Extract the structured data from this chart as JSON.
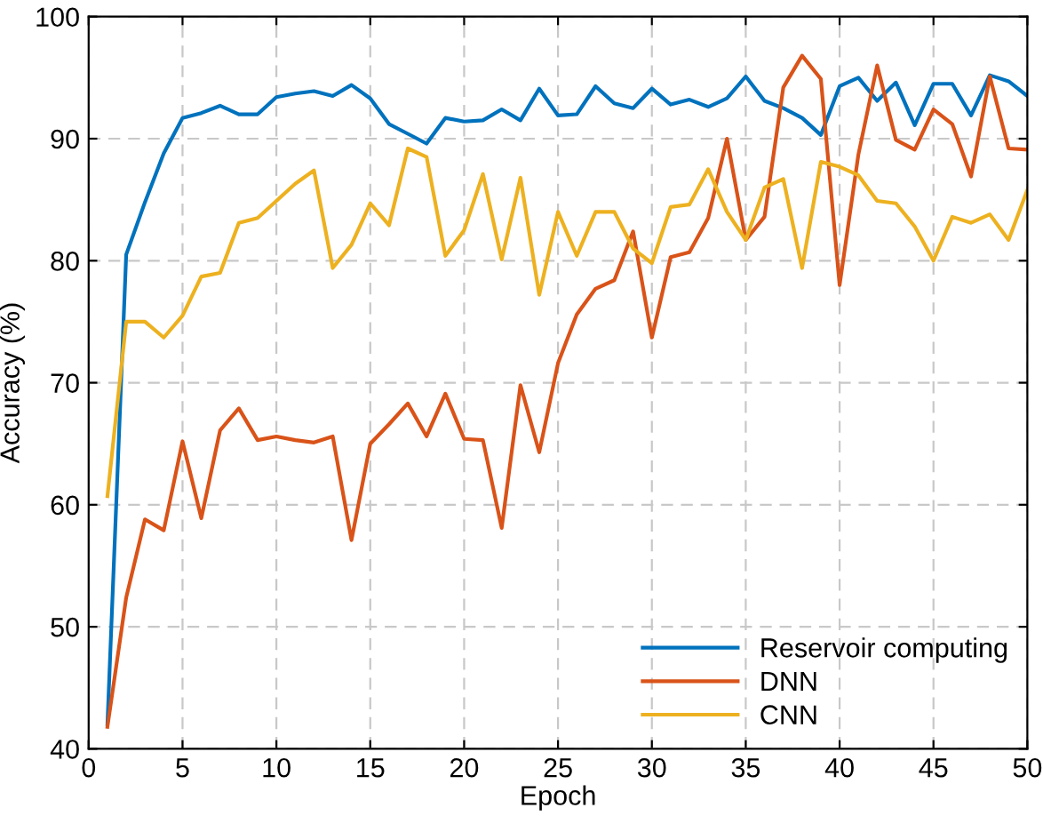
{
  "chart_data": {
    "type": "line",
    "xlabel": "Epoch",
    "ylabel": "Accuracy (%)",
    "x": [
      1,
      2,
      3,
      4,
      5,
      6,
      7,
      8,
      9,
      10,
      11,
      12,
      13,
      14,
      15,
      16,
      17,
      18,
      19,
      20,
      21,
      22,
      23,
      24,
      25,
      26,
      27,
      28,
      29,
      30,
      31,
      32,
      33,
      34,
      35,
      36,
      37,
      38,
      39,
      40,
      41,
      42,
      43,
      44,
      45,
      46,
      47,
      48,
      49,
      50
    ],
    "series": [
      {
        "name": "Reservoir computing",
        "color": "#0072bd",
        "values": [
          42,
          80.5,
          84.8,
          88.8,
          91.7,
          92.1,
          92.7,
          92.0,
          92.0,
          93.4,
          93.7,
          93.9,
          93.5,
          94.4,
          93.3,
          91.2,
          90.4,
          89.6,
          91.7,
          91.4,
          91.5,
          92.4,
          91.5,
          94.1,
          91.9,
          92.0,
          94.3,
          92.9,
          92.5,
          94.1,
          92.8,
          93.2,
          92.6,
          93.3,
          95.1,
          93.1,
          92.5,
          91.7,
          90.3,
          94.3,
          95.0,
          93.1,
          94.6,
          91.1,
          94.5,
          94.5,
          91.9,
          95.2,
          94.7,
          93.5
        ]
      },
      {
        "name": "DNN",
        "color": "#d95319",
        "values": [
          41.8,
          52.4,
          58.8,
          57.9,
          65.2,
          58.9,
          66.1,
          67.9,
          65.3,
          65.6,
          65.3,
          65.1,
          65.6,
          57.1,
          65.0,
          66.6,
          68.3,
          65.6,
          69.1,
          65.4,
          65.3,
          58.1,
          69.8,
          64.3,
          71.6,
          75.6,
          77.7,
          78.4,
          82.4,
          73.7,
          80.3,
          80.7,
          83.5,
          90.0,
          81.7,
          83.6,
          94.2,
          96.8,
          94.9,
          78.0,
          88.7,
          96.0,
          89.9,
          89.1,
          92.4,
          91.2,
          86.9,
          95.1,
          89.2,
          89.1
        ]
      },
      {
        "name": "CNN",
        "color": "#edb120",
        "values": [
          60.7,
          75.0,
          75.0,
          73.7,
          75.5,
          78.7,
          79.0,
          83.1,
          83.5,
          84.9,
          86.3,
          87.4,
          79.4,
          81.3,
          84.7,
          82.9,
          89.2,
          88.5,
          80.4,
          82.5,
          87.1,
          80.1,
          86.8,
          77.2,
          84.0,
          80.4,
          84.0,
          84.0,
          81.0,
          79.8,
          84.4,
          84.6,
          87.5,
          84.0,
          81.7,
          86.0,
          86.7,
          79.4,
          88.1,
          87.7,
          87.0,
          84.9,
          84.7,
          82.8,
          80.0,
          83.6,
          83.1,
          83.8,
          81.7,
          85.8
        ]
      }
    ],
    "xlim": [
      0,
      50
    ],
    "xticks": [
      0,
      5,
      10,
      15,
      20,
      25,
      30,
      35,
      40,
      45,
      50
    ],
    "ylim": [
      40,
      100
    ],
    "yticks": [
      40,
      50,
      60,
      70,
      80,
      90,
      100
    ],
    "grid": true,
    "legend": "bottom right",
    "line_style": "solid"
  }
}
